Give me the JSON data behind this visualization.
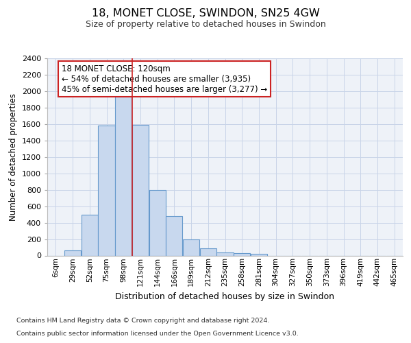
{
  "title": "18, MONET CLOSE, SWINDON, SN25 4GW",
  "subtitle": "Size of property relative to detached houses in Swindon",
  "xlabel": "Distribution of detached houses by size in Swindon",
  "ylabel": "Number of detached properties",
  "bin_labels": [
    "6sqm",
    "29sqm",
    "52sqm",
    "75sqm",
    "98sqm",
    "121sqm",
    "144sqm",
    "166sqm",
    "189sqm",
    "212sqm",
    "235sqm",
    "258sqm",
    "281sqm",
    "304sqm",
    "327sqm",
    "350sqm",
    "373sqm",
    "396sqm",
    "419sqm",
    "442sqm",
    "465sqm"
  ],
  "bar_heights": [
    0,
    60,
    500,
    1580,
    1950,
    1590,
    800,
    480,
    200,
    90,
    35,
    30,
    25,
    0,
    0,
    0,
    0,
    0,
    0,
    0,
    0
  ],
  "bar_color": "#c8d8ee",
  "bar_edge_color": "#6699cc",
  "property_line_index": 5,
  "property_line_color": "#cc2222",
  "annotation_text": "18 MONET CLOSE: 120sqm\n← 54% of detached houses are smaller (3,935)\n45% of semi-detached houses are larger (3,277) →",
  "annotation_box_color": "#ffffff",
  "annotation_box_edge_color": "#cc2222",
  "ylim": [
    0,
    2400
  ],
  "yticks": [
    0,
    200,
    400,
    600,
    800,
    1000,
    1200,
    1400,
    1600,
    1800,
    2000,
    2200,
    2400
  ],
  "grid_color": "#c8d4e8",
  "background_color": "#eef2f8",
  "footer_line1": "Contains HM Land Registry data © Crown copyright and database right 2024.",
  "footer_line2": "Contains public sector information licensed under the Open Government Licence v3.0."
}
